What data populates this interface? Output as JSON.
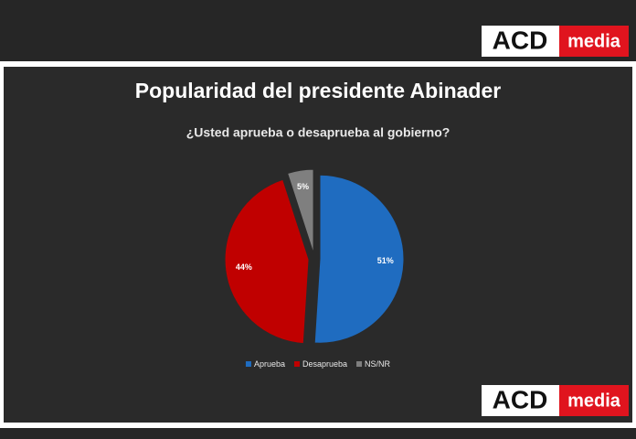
{
  "header_logo": {
    "brand": "ACD",
    "tag": "media"
  },
  "chart_data": {
    "type": "pie",
    "title": "Popularidad del presidente Abinader",
    "subtitle": "¿Usted aprueba o desaprueba al gobierno?",
    "categories": [
      "Aprueba",
      "Desaprueba",
      "NS/NR"
    ],
    "values": [
      51,
      44,
      5
    ],
    "value_labels": [
      "51%",
      "44%",
      "5%"
    ],
    "colors": [
      "#1f6cc0",
      "#c00000",
      "#7f7f7f"
    ],
    "legend": "bottom"
  },
  "footer_logo": {
    "brand": "ACD",
    "tag": "media"
  }
}
